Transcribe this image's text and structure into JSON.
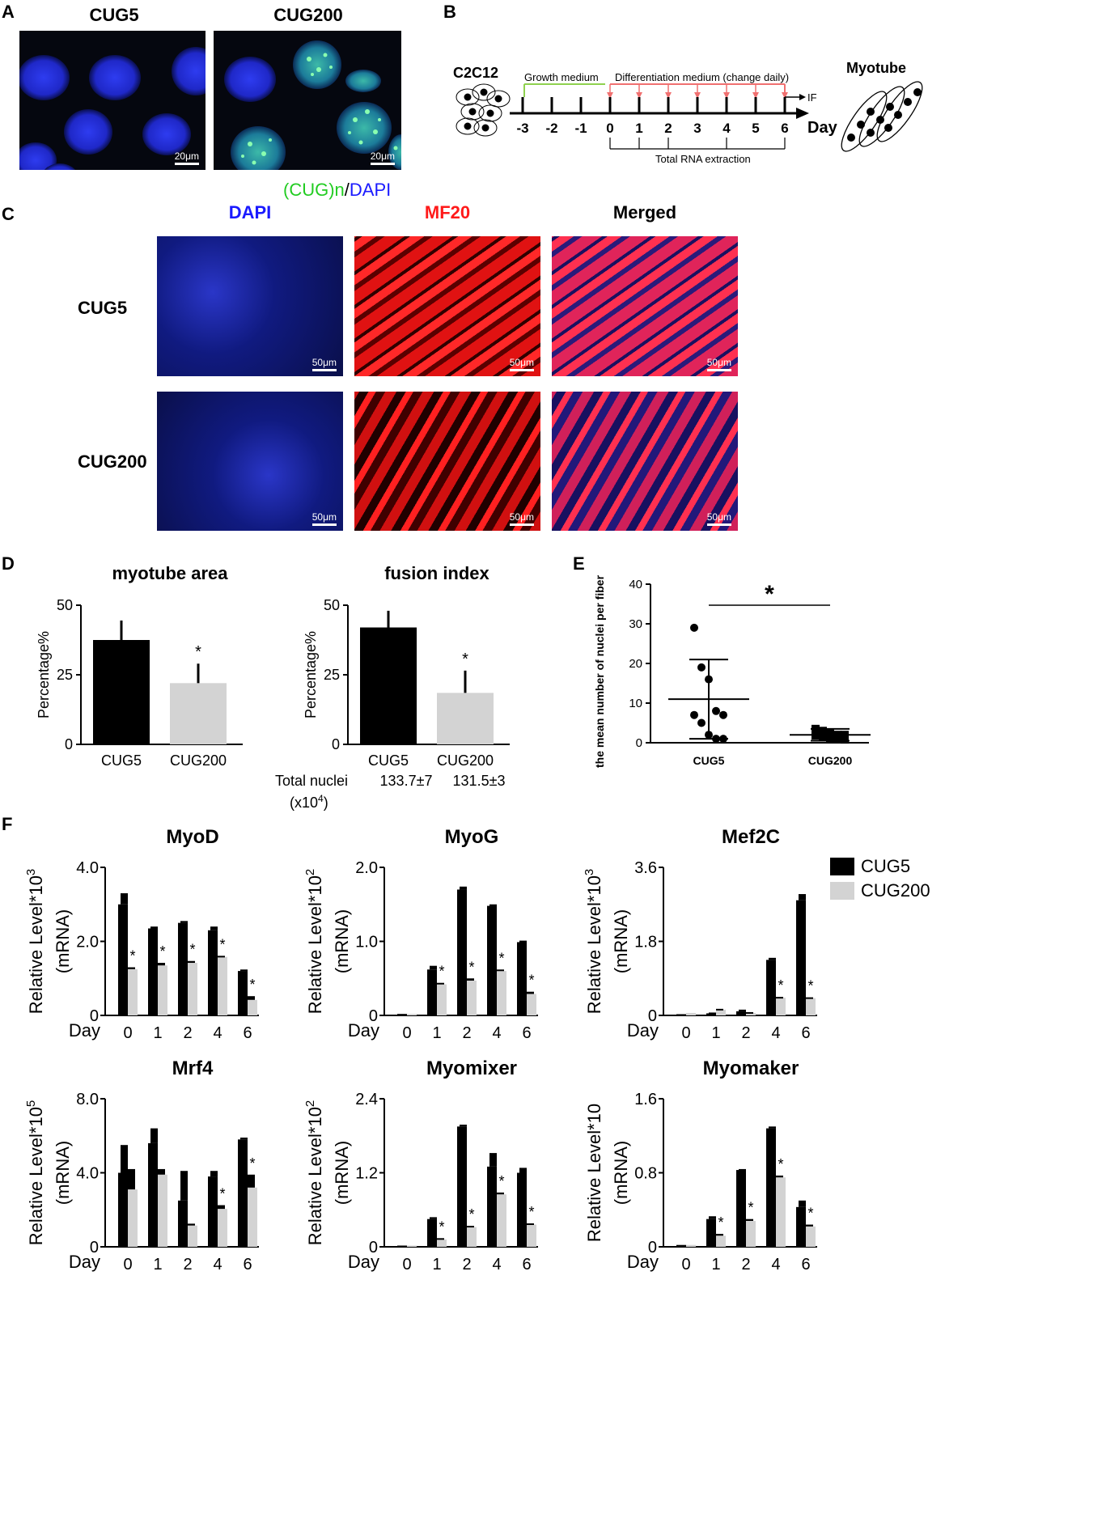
{
  "panelA": {
    "label": "A",
    "titles": [
      "CUG5",
      "CUG200"
    ],
    "caption_green": "(CUG)n",
    "caption_sep": "/",
    "caption_blue": "DAPI",
    "scalebar": "20μm"
  },
  "panelB": {
    "label": "B",
    "cell_label": "C2C12",
    "growth_label": "Growth medium",
    "diff_label": "Differentiation medium (change daily)",
    "if_label": "IF",
    "days": [
      "-3",
      "-2",
      "-1",
      "0",
      "1",
      "2",
      "3",
      "4",
      "5",
      "6"
    ],
    "day_label": "Day",
    "rna_label": "Total RNA extraction",
    "myotube_label": "Myotube"
  },
  "panelC": {
    "label": "C",
    "col_titles": [
      "DAPI",
      "MF20",
      "Merged"
    ],
    "row_titles": [
      "CUG5",
      "CUG200"
    ],
    "scalebar": "50μm"
  },
  "panelD": {
    "label": "D",
    "total_nuclei_label": "Total nuclei",
    "total_nuclei_unit_base": "(x10",
    "total_nuclei_unit_exp": "4",
    "total_nuclei_unit_end": ")",
    "total_nuclei_values": [
      "133.7±7",
      "131.5±3"
    ]
  },
  "panelE": {
    "label": "E"
  },
  "panelF": {
    "label": "F",
    "legend": [
      {
        "name": "CUG5",
        "color": "#000000"
      },
      {
        "name": "CUG200",
        "color": "#d3d3d3"
      }
    ]
  },
  "chart_data": [
    {
      "id": "myotube-area",
      "type": "bar",
      "title": "myotube area",
      "ylabel": "Percentage%",
      "ylim": [
        0,
        50
      ],
      "yticks": [
        0,
        25,
        50
      ],
      "categories": [
        "CUG5",
        "CUG200"
      ],
      "values": [
        37.5,
        22
      ],
      "errors": [
        7,
        7
      ],
      "colors": [
        "#000000",
        "#d3d3d3"
      ],
      "annotations": [
        "",
        "*"
      ]
    },
    {
      "id": "fusion-index",
      "type": "bar",
      "title": "fusion index",
      "ylabel": "Percentage%",
      "ylim": [
        0,
        50
      ],
      "yticks": [
        0,
        25,
        50
      ],
      "categories": [
        "CUG5",
        "CUG200"
      ],
      "values": [
        42,
        18.5
      ],
      "errors": [
        6,
        8
      ],
      "colors": [
        "#000000",
        "#d3d3d3"
      ],
      "annotations": [
        "",
        "*"
      ]
    },
    {
      "id": "nuclei-per-fiber",
      "type": "scatter",
      "ylabel": "the mean number of nuclei per fiber",
      "ylim": [
        0,
        40
      ],
      "yticks": [
        0,
        10,
        20,
        30,
        40
      ],
      "categories": [
        "CUG5",
        "CUG200"
      ],
      "points": [
        [
          29,
          19,
          16,
          8,
          7,
          7,
          5,
          2,
          1,
          1
        ],
        [
          3.5,
          3,
          2.5,
          2,
          2,
          1.8,
          1.5,
          1.2,
          1,
          0.8
        ]
      ],
      "means": [
        11,
        2
      ],
      "sds": [
        10,
        1.5
      ],
      "significance": "*"
    },
    {
      "id": "myod",
      "type": "bar",
      "title": "MyoD",
      "ylabel": "Relative Level*10",
      "ylabel_exp": "3",
      "ylabel2": "(mRNA)",
      "yticks": [
        0,
        2.0,
        4.0
      ],
      "ytick_labels": [
        "0",
        "2.0",
        "4.0"
      ],
      "ylim": [
        0,
        4.0
      ],
      "xlabel": "Day",
      "categories": [
        "0",
        "1",
        "2",
        "4",
        "6"
      ],
      "series": [
        {
          "name": "CUG5",
          "color": "#000000",
          "values": [
            3.0,
            2.35,
            2.5,
            2.3,
            1.2
          ],
          "errors": [
            0.3,
            0.05,
            0.05,
            0.1,
            0.04
          ]
        },
        {
          "name": "CUG200",
          "color": "#d3d3d3",
          "values": [
            1.25,
            1.35,
            1.42,
            1.58,
            0.42
          ],
          "errors": [
            0.05,
            0.07,
            0.05,
            0.03,
            0.1
          ]
        }
      ],
      "significance": [
        "*",
        "*",
        "*",
        "*",
        "*"
      ]
    },
    {
      "id": "myog",
      "type": "bar",
      "title": "MyoG",
      "ylabel": "Relative Level*10",
      "ylabel_exp": "2",
      "ylabel2": "(mRNA)",
      "yticks": [
        0,
        1.0,
        2.0
      ],
      "ytick_labels": [
        "0",
        "1.0",
        "2.0"
      ],
      "ylim": [
        0,
        2.0
      ],
      "xlabel": "Day",
      "categories": [
        "0",
        "1",
        "2",
        "4",
        "6"
      ],
      "series": [
        {
          "name": "CUG5",
          "color": "#000000",
          "values": [
            0.02,
            0.62,
            1.7,
            1.48,
            0.99
          ],
          "errors": [
            0,
            0.05,
            0.04,
            0.02,
            0.02
          ]
        },
        {
          "name": "CUG200",
          "color": "#d3d3d3",
          "values": [
            0.02,
            0.42,
            0.47,
            0.6,
            0.29
          ],
          "errors": [
            0,
            0.02,
            0.03,
            0.02,
            0.03
          ]
        }
      ],
      "significance": [
        "",
        "*",
        "*",
        "*",
        "*"
      ]
    },
    {
      "id": "mef2c",
      "type": "bar",
      "title": "Mef2C",
      "ylabel": "Relative Level*10",
      "ylabel_exp": "3",
      "ylabel2": "(mRNA)",
      "yticks": [
        0,
        1.8,
        3.6
      ],
      "ytick_labels": [
        "0",
        "1.8",
        "3.6"
      ],
      "ylim": [
        0,
        3.6
      ],
      "xlabel": "Day",
      "categories": [
        "0",
        "1",
        "2",
        "4",
        "6"
      ],
      "series": [
        {
          "name": "CUG5",
          "color": "#000000",
          "values": [
            0.03,
            0.05,
            0.1,
            1.35,
            2.8
          ],
          "errors": [
            0,
            0.02,
            0.04,
            0.05,
            0.15
          ]
        },
        {
          "name": "CUG200",
          "color": "#d3d3d3",
          "values": [
            0.06,
            0.14,
            0.06,
            0.43,
            0.42
          ],
          "errors": [
            0,
            0.02,
            0.02,
            0.02,
            0.02
          ]
        }
      ],
      "significance": [
        "",
        "",
        "",
        "*",
        "*"
      ]
    },
    {
      "id": "mrf4",
      "type": "bar",
      "title": "Mrf4",
      "ylabel": "Relative Level*10",
      "ylabel_exp": "5",
      "ylabel2": "(mRNA)",
      "yticks": [
        0,
        4.0,
        8.0
      ],
      "ytick_labels": [
        "0",
        "4.0",
        "8.0"
      ],
      "ylim": [
        0,
        8.0
      ],
      "xlabel": "Day",
      "categories": [
        "0",
        "1",
        "2",
        "4",
        "6"
      ],
      "series": [
        {
          "name": "CUG5",
          "color": "#000000",
          "values": [
            4.0,
            5.6,
            2.5,
            3.8,
            5.8
          ],
          "errors": [
            1.5,
            0.8,
            1.6,
            0.3,
            0.1
          ]
        },
        {
          "name": "CUG200",
          "color": "#d3d3d3",
          "values": [
            3.1,
            3.9,
            1.15,
            2.05,
            3.2
          ],
          "errors": [
            1.1,
            0.3,
            0.1,
            0.2,
            0.7
          ]
        }
      ],
      "significance": [
        "",
        "",
        "",
        "*",
        "*"
      ]
    },
    {
      "id": "myomixer",
      "type": "bar",
      "title": "Myomixer",
      "ylabel": "Relative Level*10",
      "ylabel_exp": "2",
      "ylabel2": "(mRNA)",
      "yticks": [
        0,
        1.2,
        2.4
      ],
      "ytick_labels": [
        "0",
        "1.2",
        "2.4"
      ],
      "ylim": [
        0,
        2.4
      ],
      "xlabel": "Day",
      "categories": [
        "0",
        "1",
        "2",
        "4",
        "6"
      ],
      "series": [
        {
          "name": "CUG5",
          "color": "#000000",
          "values": [
            0.02,
            0.45,
            1.95,
            1.3,
            1.2
          ],
          "errors": [
            0,
            0.03,
            0.03,
            0.22,
            0.08
          ]
        },
        {
          "name": "CUG200",
          "color": "#d3d3d3",
          "values": [
            0.02,
            0.12,
            0.32,
            0.85,
            0.36
          ],
          "errors": [
            0,
            0.02,
            0.02,
            0.03,
            0.02
          ]
        }
      ],
      "significance": [
        "",
        "*",
        "*",
        "*",
        "*"
      ]
    },
    {
      "id": "myomaker",
      "type": "bar",
      "title": "Myomaker",
      "ylabel": "Relative Level*10",
      "ylabel_exp": "",
      "ylabel2": "(mRNA)",
      "yticks": [
        0,
        0.8,
        1.6
      ],
      "ytick_labels": [
        "0",
        "0.8",
        "1.6"
      ],
      "ylim": [
        0,
        1.6
      ],
      "xlabel": "Day",
      "categories": [
        "0",
        "1",
        "2",
        "4",
        "6"
      ],
      "series": [
        {
          "name": "CUG5",
          "color": "#000000",
          "values": [
            0.02,
            0.3,
            0.83,
            1.28,
            0.43
          ],
          "errors": [
            0,
            0.03,
            0.01,
            0.02,
            0.07
          ]
        },
        {
          "name": "CUG200",
          "color": "#d3d3d3",
          "values": [
            0.02,
            0.12,
            0.28,
            0.75,
            0.22
          ],
          "errors": [
            0,
            0.02,
            0.02,
            0.02,
            0.02
          ]
        }
      ],
      "significance": [
        "",
        "*",
        "*",
        "*",
        "*"
      ]
    }
  ]
}
